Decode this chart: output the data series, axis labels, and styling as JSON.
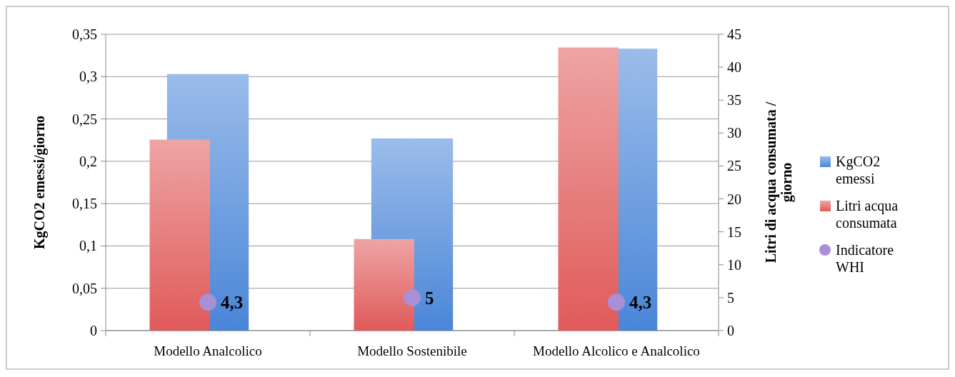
{
  "chart_data": {
    "type": "bar",
    "ylabel": "KgCO2 emessi/giorno",
    "y2label": "Litri di acqua consumata / giorno",
    "categories": [
      "Modello Analcolico",
      "Modello Sostenibile",
      "Modello Alcolico e Analcolico"
    ],
    "series": [
      {
        "name": "KgCO2 emessi",
        "color": "#4a86d8",
        "values": [
          0.303,
          0.227,
          0.333
        ]
      },
      {
        "name": "Litri acqua consumata",
        "type": "bar",
        "axis": "y2",
        "color": "#e05a5a",
        "values": [
          29,
          13.9,
          43
        ]
      },
      {
        "name": "Indicatore WHI",
        "type": "scatter",
        "axis": "y2",
        "color": "#a98fd6",
        "marker": "circle",
        "x": [
          "Modello Analcolico",
          "Modello Sostenibile",
          "Modello Alcolico e Analcolico"
        ],
        "values": [
          4.3,
          5,
          4.3
        ],
        "value_labels": [
          "4,3",
          "5",
          "4,3"
        ]
      }
    ],
    "ylim": [
      0,
      0.35
    ],
    "yticks": [
      0,
      {
        "value": 0.05,
        "label": "0,05"
      },
      {
        "value": 0.1,
        "label": "0,1"
      },
      {
        "value": 0.15,
        "label": "0,15"
      },
      {
        "value": 0.2,
        "label": "0,2"
      },
      {
        "value": 0.25,
        "label": "0,25"
      },
      {
        "value": 0.3,
        "label": "0,3"
      },
      {
        "value": 0.35,
        "label": "0,35"
      }
    ],
    "y2lim": [
      0,
      45
    ],
    "y2ticks": [
      0,
      5,
      10,
      15,
      20,
      25,
      30,
      35,
      40,
      45
    ],
    "grid": "y",
    "legend": "right"
  }
}
